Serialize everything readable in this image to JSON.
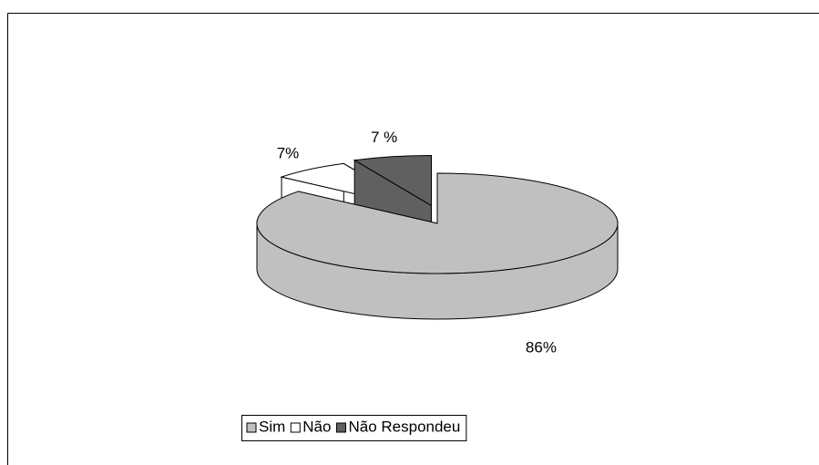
{
  "chart_data": {
    "type": "pie",
    "categories": [
      "Sim",
      "Não",
      "Não Respondeu"
    ],
    "values": [
      86,
      7,
      7
    ],
    "value_labels": [
      "86%",
      "7%",
      "7 %"
    ],
    "colors": [
      "#c0c0c0",
      "#ffffff",
      "#606060"
    ],
    "legend": "bottom"
  }
}
